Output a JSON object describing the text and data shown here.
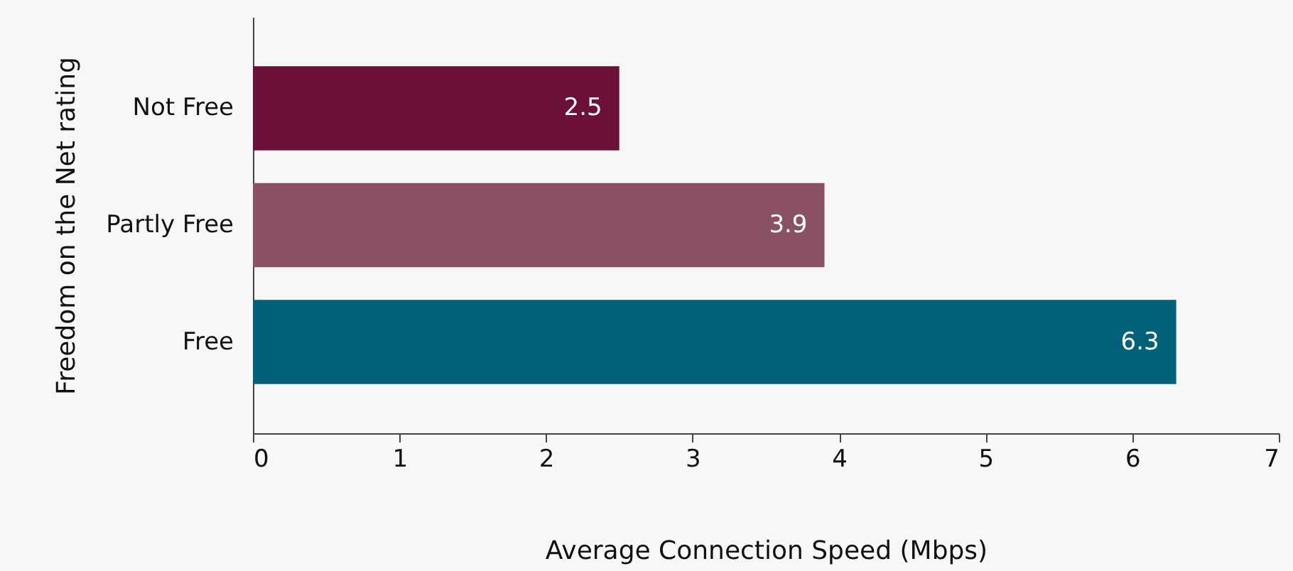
{
  "chart_data": {
    "type": "bar",
    "orientation": "horizontal",
    "xlabel": "Average Connection Speed (Mbps)",
    "ylabel": "Freedom on the Net rating",
    "categories": [
      "Not Free",
      "Partly Free",
      "Free"
    ],
    "values": [
      2.5,
      3.9,
      6.3
    ],
    "colors": [
      "#6b1039",
      "#8a5064",
      "#006178"
    ],
    "xlim": [
      0,
      7
    ],
    "xticks": [
      0,
      1,
      2,
      3,
      4,
      5,
      6,
      7
    ],
    "grid": false,
    "data_labels": true
  }
}
